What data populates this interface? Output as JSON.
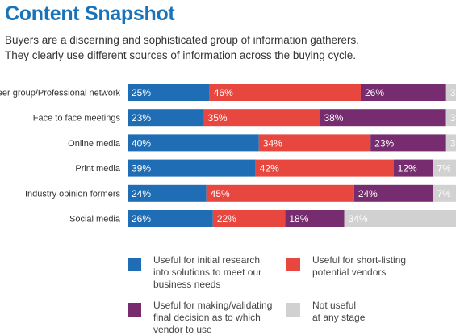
{
  "header": {
    "title": "Content Snapshot",
    "subtitle_lines": [
      "Buyers are a discerning and sophisticated group of information gatherers.",
      "They clearly use different sources of information across the buying cycle."
    ]
  },
  "chart_data": {
    "type": "bar",
    "orientation": "horizontal",
    "stacked": true,
    "percent_stacked": true,
    "categories": [
      "Peer group/Professional network",
      "Face to face meetings",
      "Online media",
      "Print media",
      "Industry opinion formers",
      "Social media"
    ],
    "series": [
      {
        "name": "Useful for initial research\ninto solutions to meet our\nbusiness needs",
        "color": "#1f6db5",
        "values": [
          25,
          23,
          40,
          39,
          24,
          26
        ]
      },
      {
        "name": "Useful for short-listing\npotential vendors",
        "color": "#e8473f",
        "values": [
          46,
          35,
          34,
          42,
          45,
          22
        ]
      },
      {
        "name": "Useful for making/validating\nfinal decision as to which\nvendor to use",
        "color": "#762c6f",
        "values": [
          26,
          38,
          23,
          12,
          24,
          18
        ]
      },
      {
        "name": "Not useful\nat any stage",
        "color": "#d1d1d1",
        "values": [
          3,
          3,
          3,
          7,
          7,
          34
        ]
      }
    ],
    "value_suffix": "%",
    "grid": false,
    "legend_position": "bottom"
  }
}
